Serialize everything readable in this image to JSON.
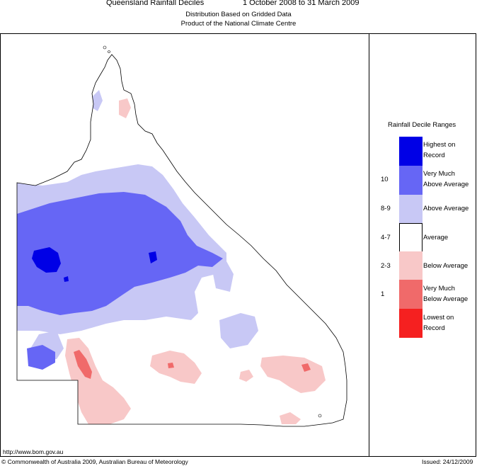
{
  "header": {
    "title": "Queensland Rainfall Deciles",
    "period": "1 October 2008 to 31 March 2009",
    "subtitle1": "Distribution Based on Gridded Data",
    "subtitle2": "Product of the National Climate Centre"
  },
  "legend": {
    "title": "Rainfall Decile Ranges",
    "items": [
      {
        "range": "",
        "line1": "Highest on",
        "line2": "Record",
        "color": "#0000e6"
      },
      {
        "range": "10",
        "line1": "Very Much",
        "line2": "Above Average",
        "color": "#6666f5"
      },
      {
        "range": "8-9",
        "line1": "Above Average",
        "line2": "",
        "color": "#c8c8f5"
      },
      {
        "range": "4-7",
        "line1": "Average",
        "line2": "",
        "color": "#ffffff"
      },
      {
        "range": "2-3",
        "line1": "Below Average",
        "line2": "",
        "color": "#f8c8c8"
      },
      {
        "range": "1",
        "line1": "Very Much",
        "line2": "Below Average",
        "color": "#f06a6a"
      },
      {
        "range": "",
        "line1": "Lowest on",
        "line2": "Record",
        "color": "#f52020"
      }
    ]
  },
  "footer": {
    "url": "http://www.bom.gov.au",
    "copyright": "© Commonwealth of Australia 2009, Australian Bureau of Meteorology",
    "issued": "Issued: 24/12/2009"
  }
}
